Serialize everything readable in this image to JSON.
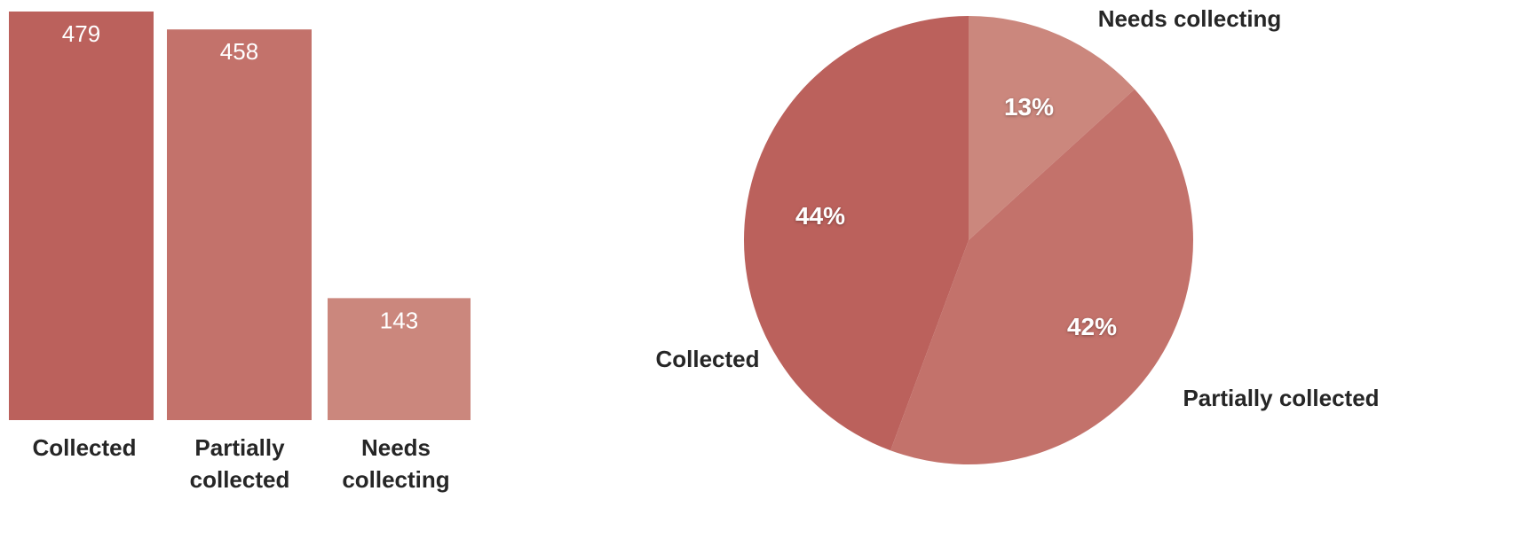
{
  "chart_data": [
    {
      "type": "bar",
      "categories": [
        "Collected",
        "Partially collected",
        "Needs collecting"
      ],
      "category_label_lines": [
        [
          "Collected"
        ],
        [
          "Partially",
          "collected"
        ],
        [
          "Needs",
          "collecting"
        ]
      ],
      "values": [
        479,
        458,
        143
      ],
      "value_labels": [
        "479",
        "458",
        "143"
      ],
      "colors": [
        "#bb615c",
        "#c3726b",
        "#cb877d"
      ],
      "title": "",
      "xlabel": "",
      "ylabel": "",
      "ylim": [
        0,
        479
      ],
      "grid": false,
      "legend": "none"
    },
    {
      "type": "pie",
      "categories": [
        "Needs collecting",
        "Partially collected",
        "Collected"
      ],
      "values": [
        143,
        458,
        479
      ],
      "percent_labels": [
        "13%",
        "42%",
        "44%"
      ],
      "colors": [
        "#cb877d",
        "#c3726b",
        "#bb615c"
      ],
      "start": "12 o'clock",
      "direction": "clockwise",
      "title": "",
      "legend": "none"
    }
  ]
}
